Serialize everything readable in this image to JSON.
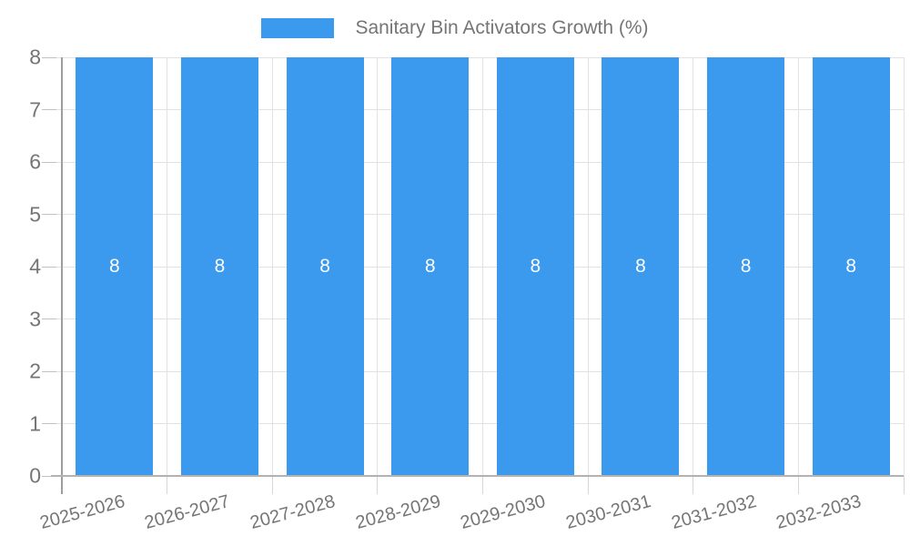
{
  "chart_data": {
    "type": "bar",
    "title": "Sanitary Bin Activators Growth (%)",
    "categories": [
      "2025-2026",
      "2026-2027",
      "2027-2028",
      "2028-2029",
      "2029-2030",
      "2030-2031",
      "2031-2032",
      "2032-2033"
    ],
    "values": [
      8,
      8,
      8,
      8,
      8,
      8,
      8,
      8
    ],
    "data_labels": [
      "8",
      "8",
      "8",
      "8",
      "8",
      "8",
      "8",
      "8"
    ],
    "xlabel": "",
    "ylabel": "",
    "ylim": [
      0,
      8
    ],
    "yticks": [
      0,
      1,
      2,
      3,
      4,
      5,
      6,
      7,
      8
    ],
    "ytick_labels": [
      "0",
      "1",
      "2",
      "3",
      "4",
      "5",
      "6",
      "7",
      "8"
    ],
    "grid": "on",
    "legend_position": "top",
    "data_label_position": "center"
  },
  "colors": {
    "bar": "#3B99EE",
    "text": "#757575",
    "bar_label": "#ffffff",
    "grid": "#e2e2e2",
    "y_tick": "#c2c2c2",
    "x_tick": "#d6d6d6",
    "y_axis": "#9e9e9e",
    "x_axis": "#b2b2b2"
  }
}
